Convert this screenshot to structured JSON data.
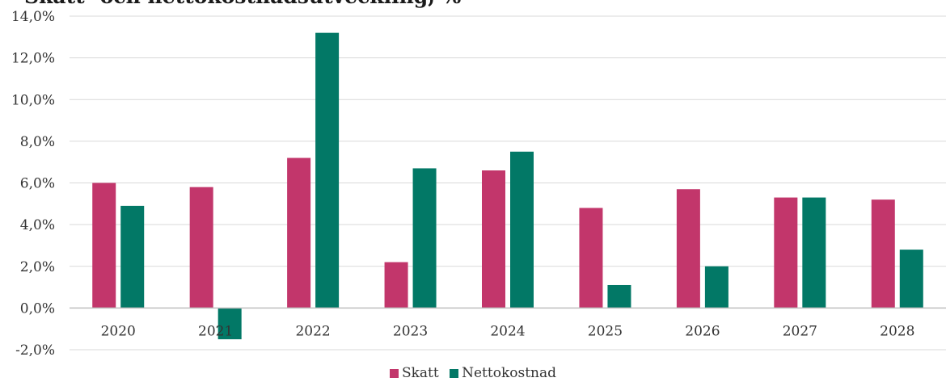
{
  "title": "Skatt- och nettokostnadsutveckling, %",
  "colors": {
    "skatt": "#c2366b",
    "netto": "#027866",
    "grid": "#d9d9d9",
    "axis": "#bfbfbf"
  },
  "legend": {
    "skatt": "Skatt",
    "netto": "Nettokostnad"
  },
  "chart_data": {
    "type": "bar",
    "categories": [
      "2020",
      "2021",
      "2022",
      "2023",
      "2024",
      "2025",
      "2026",
      "2027",
      "2028"
    ],
    "series": [
      {
        "name": "Skatt",
        "values": [
          6.0,
          5.8,
          7.2,
          2.2,
          6.6,
          4.8,
          5.7,
          5.3,
          5.2
        ]
      },
      {
        "name": "Nettokostnad",
        "values": [
          4.9,
          -1.5,
          13.2,
          6.7,
          7.5,
          1.1,
          2.0,
          5.3,
          2.8
        ]
      }
    ],
    "ylim": [
      -2,
      14
    ],
    "yticks": [
      "-2,0%",
      "0,0%",
      "2,0%",
      "4,0%",
      "6,0%",
      "8,0%",
      "10,0%",
      "12,0%",
      "14,0%"
    ],
    "ytick_values": [
      -2,
      0,
      2,
      4,
      6,
      8,
      10,
      12,
      14
    ],
    "grid": true,
    "legend_position": "bottom"
  }
}
